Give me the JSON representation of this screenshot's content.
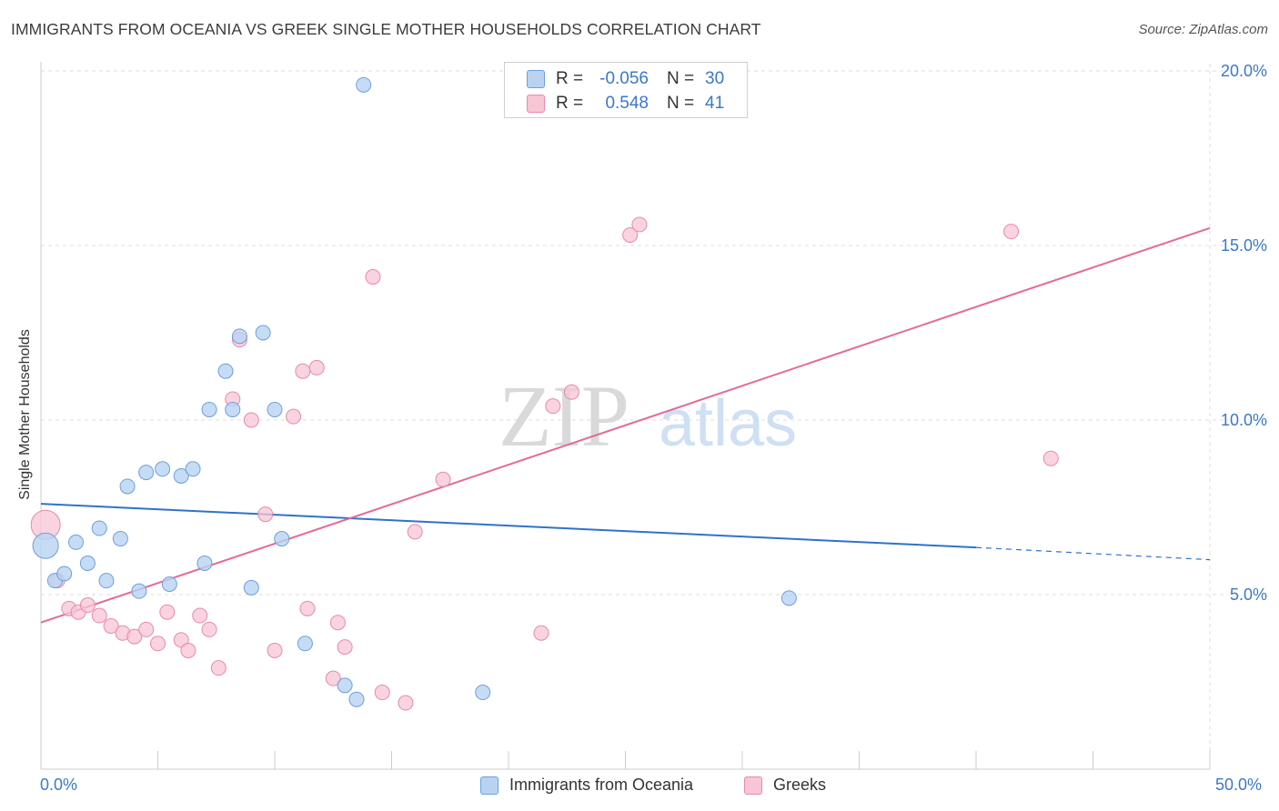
{
  "title": "IMMIGRANTS FROM OCEANIA VS GREEK SINGLE MOTHER HOUSEHOLDS CORRELATION CHART",
  "source": "Source: ZipAtlas.com",
  "watermark": {
    "zip": "ZIP",
    "atlas": "atlas"
  },
  "legend": {
    "rows": [
      {
        "r_label": "R =",
        "r_value": "-0.056",
        "n_label": "N =",
        "n_value": "30"
      },
      {
        "r_label": "R =",
        "r_value": "0.548",
        "n_label": "N =",
        "n_value": "41"
      }
    ]
  },
  "x_axis": {
    "min_label": "0.0%",
    "max_label": "50.0%"
  },
  "y_axis": {
    "label": "Single Mother Households",
    "tick_labels": [
      "5.0%",
      "10.0%",
      "15.0%",
      "20.0%"
    ]
  },
  "bottom_legend": {
    "series1": "Immigrants from Oceania",
    "series2": "Greeks"
  },
  "colors": {
    "oceania_fill": "#b8d3f2",
    "oceania_stroke": "#6d9fdb",
    "oceania_line": "#2f72cc",
    "greeks_fill": "#f7c6d5",
    "greeks_stroke": "#e88aa8",
    "greeks_line": "#e36a98",
    "grid": "#dddddd",
    "axis_text": "#3b78c8"
  },
  "chart_data": {
    "type": "scatter",
    "xlim": [
      0,
      50
    ],
    "ylim": [
      0,
      20
    ],
    "x_ticks": [
      0,
      5,
      10,
      15,
      20,
      25,
      30,
      35,
      40,
      45,
      50
    ],
    "y_ticks": [
      5,
      10,
      15,
      20
    ],
    "grid": true,
    "series": [
      {
        "name": "Immigrants from Oceania",
        "R": -0.056,
        "N": 30,
        "trend": {
          "x": [
            0,
            40,
            50
          ],
          "y": [
            7.6,
            6.35,
            6.0
          ],
          "dashed_from": 40
        },
        "points": [
          {
            "x": 0.2,
            "y": 6.4,
            "r": 14
          },
          {
            "x": 0.6,
            "y": 5.4
          },
          {
            "x": 1.0,
            "y": 5.6
          },
          {
            "x": 1.5,
            "y": 6.5
          },
          {
            "x": 2.0,
            "y": 5.9
          },
          {
            "x": 2.5,
            "y": 6.9
          },
          {
            "x": 2.8,
            "y": 5.4
          },
          {
            "x": 3.4,
            "y": 6.6
          },
          {
            "x": 3.7,
            "y": 8.1
          },
          {
            "x": 4.2,
            "y": 5.1
          },
          {
            "x": 4.5,
            "y": 8.5
          },
          {
            "x": 5.2,
            "y": 8.6
          },
          {
            "x": 5.5,
            "y": 5.3
          },
          {
            "x": 6.0,
            "y": 8.4
          },
          {
            "x": 6.5,
            "y": 8.6
          },
          {
            "x": 7.0,
            "y": 5.9
          },
          {
            "x": 7.2,
            "y": 10.3
          },
          {
            "x": 7.9,
            "y": 11.4
          },
          {
            "x": 8.2,
            "y": 10.3
          },
          {
            "x": 8.5,
            "y": 12.4
          },
          {
            "x": 9.0,
            "y": 5.2
          },
          {
            "x": 9.5,
            "y": 12.5
          },
          {
            "x": 10.0,
            "y": 10.3
          },
          {
            "x": 10.3,
            "y": 6.6
          },
          {
            "x": 11.3,
            "y": 3.6
          },
          {
            "x": 13.0,
            "y": 2.4
          },
          {
            "x": 13.5,
            "y": 2.0
          },
          {
            "x": 13.8,
            "y": 19.6
          },
          {
            "x": 18.9,
            "y": 2.2
          },
          {
            "x": 32.0,
            "y": 4.9
          }
        ]
      },
      {
        "name": "Greeks",
        "R": 0.548,
        "N": 41,
        "trend": {
          "x": [
            0,
            50
          ],
          "y": [
            4.2,
            15.5
          ]
        },
        "points": [
          {
            "x": 0.2,
            "y": 7.0,
            "r": 16
          },
          {
            "x": 0.7,
            "y": 5.4
          },
          {
            "x": 1.2,
            "y": 4.6
          },
          {
            "x": 1.6,
            "y": 4.5
          },
          {
            "x": 2.0,
            "y": 4.7
          },
          {
            "x": 2.5,
            "y": 4.4
          },
          {
            "x": 3.0,
            "y": 4.1
          },
          {
            "x": 3.5,
            "y": 3.9
          },
          {
            "x": 4.0,
            "y": 3.8
          },
          {
            "x": 4.5,
            "y": 4.0
          },
          {
            "x": 5.0,
            "y": 3.6
          },
          {
            "x": 5.4,
            "y": 4.5
          },
          {
            "x": 6.0,
            "y": 3.7
          },
          {
            "x": 6.3,
            "y": 3.4
          },
          {
            "x": 6.8,
            "y": 4.4
          },
          {
            "x": 7.2,
            "y": 4.0
          },
          {
            "x": 7.6,
            "y": 2.9
          },
          {
            "x": 8.2,
            "y": 10.6
          },
          {
            "x": 8.5,
            "y": 12.3
          },
          {
            "x": 9.0,
            "y": 10.0
          },
          {
            "x": 9.6,
            "y": 7.3
          },
          {
            "x": 10.0,
            "y": 3.4
          },
          {
            "x": 10.8,
            "y": 10.1
          },
          {
            "x": 11.2,
            "y": 11.4
          },
          {
            "x": 11.4,
            "y": 4.6
          },
          {
            "x": 11.8,
            "y": 11.5
          },
          {
            "x": 12.5,
            "y": 2.6
          },
          {
            "x": 12.7,
            "y": 4.2
          },
          {
            "x": 13.0,
            "y": 3.5
          },
          {
            "x": 14.2,
            "y": 14.1
          },
          {
            "x": 14.6,
            "y": 2.2
          },
          {
            "x": 15.6,
            "y": 1.9
          },
          {
            "x": 16.0,
            "y": 6.8
          },
          {
            "x": 17.2,
            "y": 8.3
          },
          {
            "x": 21.4,
            "y": 3.9
          },
          {
            "x": 21.9,
            "y": 10.4
          },
          {
            "x": 22.7,
            "y": 10.8
          },
          {
            "x": 25.2,
            "y": 15.3
          },
          {
            "x": 25.6,
            "y": 15.6
          },
          {
            "x": 41.5,
            "y": 15.4
          },
          {
            "x": 43.2,
            "y": 8.9
          }
        ]
      }
    ]
  }
}
